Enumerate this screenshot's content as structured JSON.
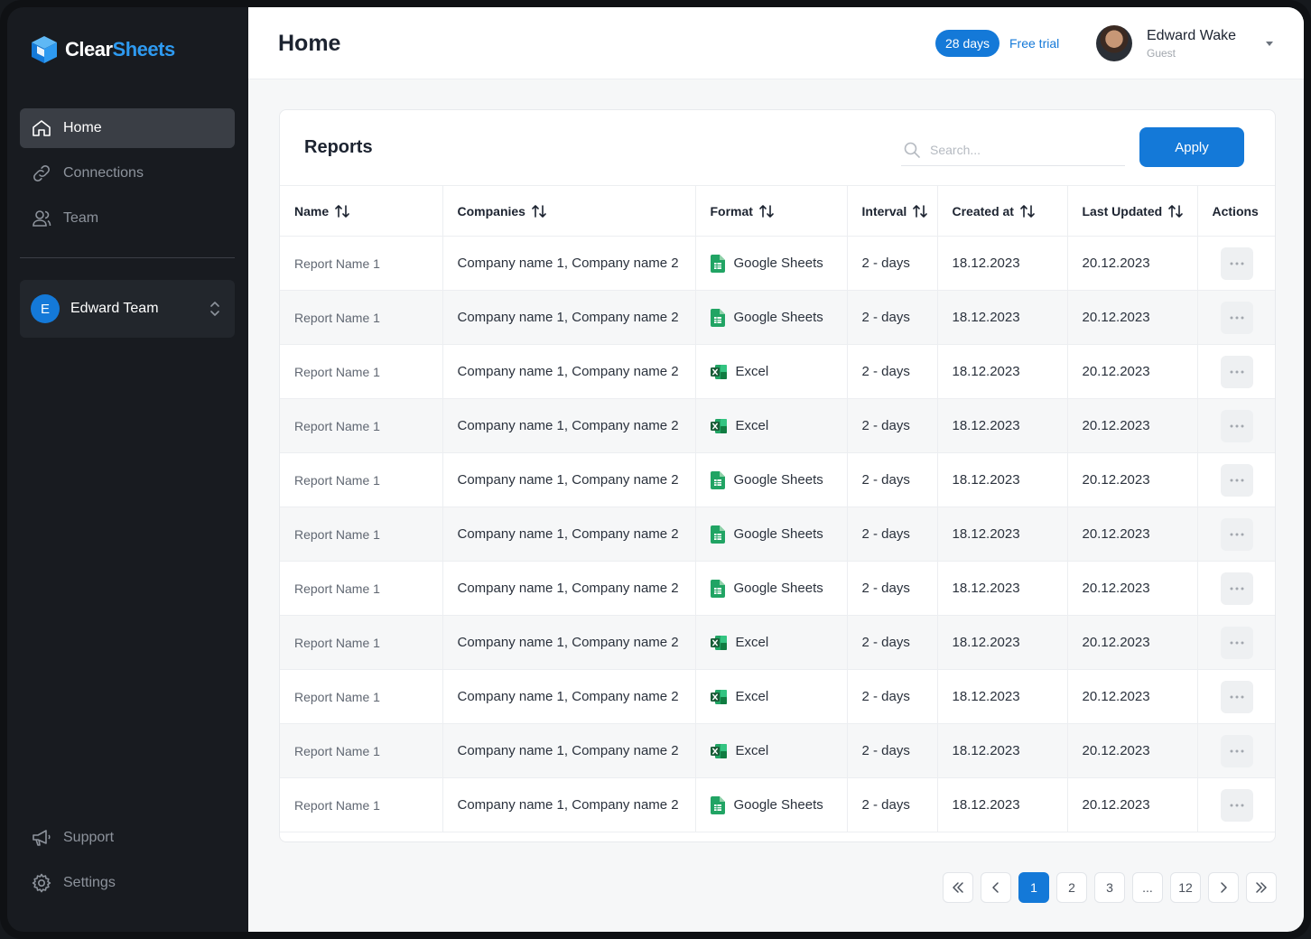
{
  "brand": {
    "name_part1": "Clear",
    "name_part2": "Sheets",
    "icon": "cube-logo-icon"
  },
  "sidebar": {
    "items": [
      {
        "label": "Home",
        "icon": "home-icon",
        "active": true
      },
      {
        "label": "Connections",
        "icon": "link-icon",
        "active": false
      },
      {
        "label": "Team",
        "icon": "users-icon",
        "active": false
      }
    ],
    "team": {
      "initial": "E",
      "name": "Edward Team"
    },
    "bottom_items": [
      {
        "label": "Support",
        "icon": "megaphone-icon"
      },
      {
        "label": "Settings",
        "icon": "gear-icon"
      }
    ]
  },
  "header": {
    "title": "Home",
    "trial_days": "28 days",
    "trial_label": "Free trial",
    "user": {
      "name": "Edward Wake",
      "role": "Guest"
    }
  },
  "reports": {
    "title": "Reports",
    "search_placeholder": "Search...",
    "apply_label": "Apply",
    "columns": [
      "Name",
      "Companies",
      "Format",
      "Interval",
      "Created at",
      "Last Updated",
      "Actions"
    ],
    "rows": [
      {
        "name": "Report Name 1",
        "companies": "Company name 1,  Company name 2",
        "format": "Google Sheets",
        "interval": "2 - days",
        "created": "18.12.2023",
        "updated": "20.12.2023"
      },
      {
        "name": "Report Name 1",
        "companies": "Company name 1,  Company name 2",
        "format": "Google Sheets",
        "interval": "2 - days",
        "created": "18.12.2023",
        "updated": "20.12.2023"
      },
      {
        "name": "Report Name 1",
        "companies": "Company name 1,  Company name 2",
        "format": "Excel",
        "interval": "2 - days",
        "created": "18.12.2023",
        "updated": "20.12.2023"
      },
      {
        "name": "Report Name 1",
        "companies": "Company name 1,  Company name 2",
        "format": "Excel",
        "interval": "2 - days",
        "created": "18.12.2023",
        "updated": "20.12.2023"
      },
      {
        "name": "Report Name 1",
        "companies": "Company name 1,  Company name 2",
        "format": "Google Sheets",
        "interval": "2 - days",
        "created": "18.12.2023",
        "updated": "20.12.2023"
      },
      {
        "name": "Report Name 1",
        "companies": "Company name 1,  Company name 2",
        "format": "Google Sheets",
        "interval": "2 - days",
        "created": "18.12.2023",
        "updated": "20.12.2023"
      },
      {
        "name": "Report Name 1",
        "companies": "Company name 1,  Company name 2",
        "format": "Google Sheets",
        "interval": "2 - days",
        "created": "18.12.2023",
        "updated": "20.12.2023"
      },
      {
        "name": "Report Name 1",
        "companies": "Company name 1,  Company name 2",
        "format": "Excel",
        "interval": "2 - days",
        "created": "18.12.2023",
        "updated": "20.12.2023"
      },
      {
        "name": "Report Name 1",
        "companies": "Company name 1,  Company name 2",
        "format": "Excel",
        "interval": "2 - days",
        "created": "18.12.2023",
        "updated": "20.12.2023"
      },
      {
        "name": "Report Name 1",
        "companies": "Company name 1,  Company name 2",
        "format": "Excel",
        "interval": "2 - days",
        "created": "18.12.2023",
        "updated": "20.12.2023"
      },
      {
        "name": "Report Name 1",
        "companies": "Company name 1,  Company name 2",
        "format": "Google Sheets",
        "interval": "2 - days",
        "created": "18.12.2023",
        "updated": "20.12.2023"
      }
    ]
  },
  "pagination": {
    "pages": [
      "1",
      "2",
      "3",
      "...",
      "12"
    ],
    "current": "1"
  },
  "colors": {
    "accent": "#1479d8",
    "sidebar_bg": "#181b20",
    "google_sheets": "#21a464",
    "excel": "#1d7044"
  }
}
